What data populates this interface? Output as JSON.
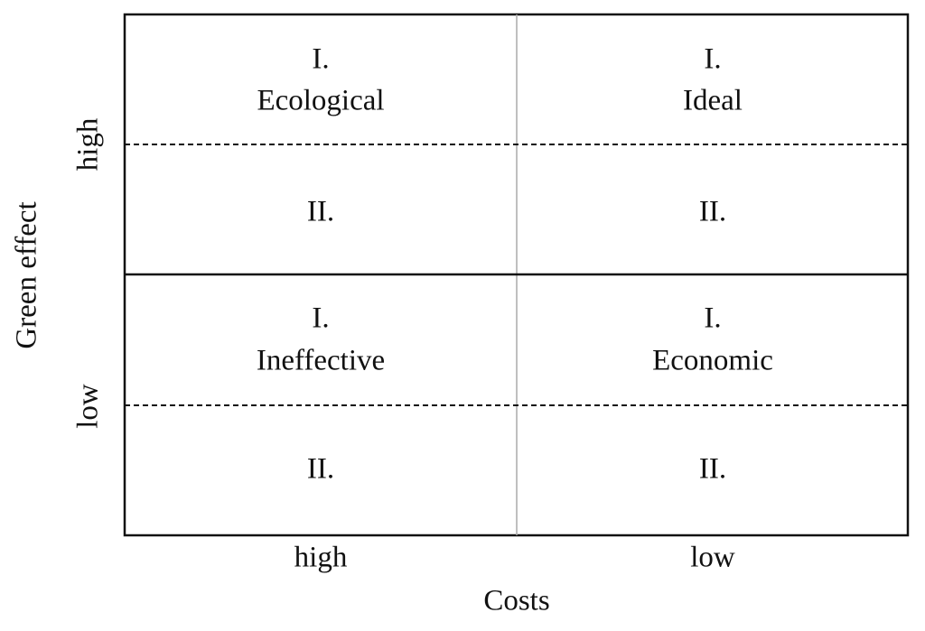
{
  "axes": {
    "y": {
      "label": "Green effect",
      "ticks": [
        "high",
        "low"
      ]
    },
    "x": {
      "label": "Costs",
      "ticks": [
        "high",
        "low"
      ]
    }
  },
  "quadrants": [
    {
      "rank": "I.",
      "name": "Ecological",
      "sub": "II."
    },
    {
      "rank": "I.",
      "name": "Ideal",
      "sub": "II."
    },
    {
      "rank": "I.",
      "name": "Ineffective",
      "sub": "II."
    },
    {
      "rank": "I.",
      "name": "Economic",
      "sub": "II."
    }
  ]
}
